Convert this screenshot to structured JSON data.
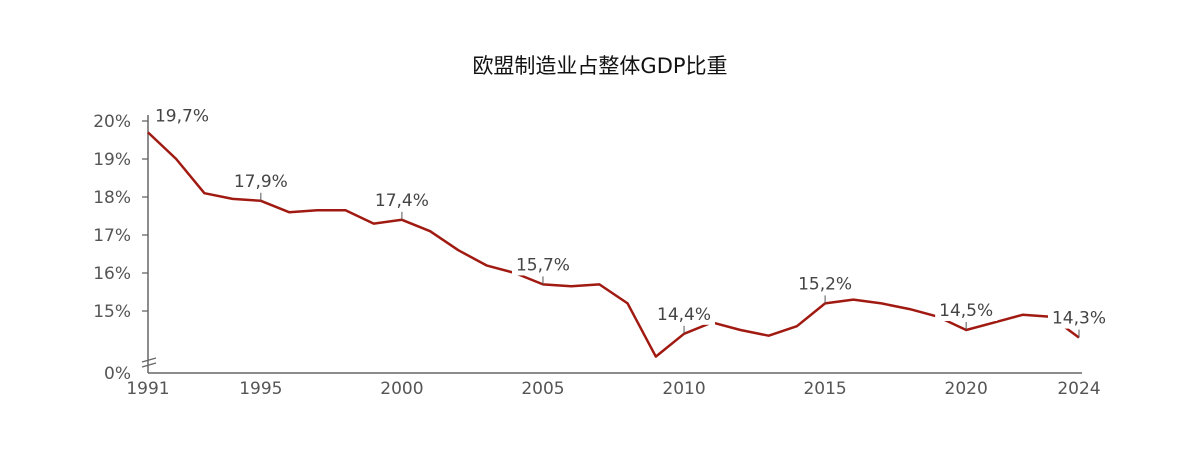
{
  "chart_data": {
    "type": "line",
    "title": "欧盟制造业占整体GDP比重",
    "xlabel": "",
    "ylabel": "",
    "x": [
      1991,
      1992,
      1993,
      1994,
      1995,
      1996,
      1997,
      1998,
      1999,
      2000,
      2001,
      2002,
      2003,
      2004,
      2005,
      2006,
      2007,
      2008,
      2009,
      2010,
      2011,
      2012,
      2013,
      2014,
      2015,
      2016,
      2017,
      2018,
      2019,
      2020,
      2021,
      2022,
      2023,
      2024
    ],
    "values": [
      19.7,
      19.0,
      18.1,
      17.95,
      17.9,
      17.6,
      17.65,
      17.65,
      17.3,
      17.4,
      17.1,
      16.6,
      16.2,
      16.0,
      15.7,
      15.65,
      15.7,
      15.2,
      13.8,
      14.4,
      14.7,
      14.5,
      14.35,
      14.6,
      15.2,
      15.3,
      15.2,
      15.05,
      14.85,
      14.5,
      14.7,
      14.9,
      14.85,
      14.3
    ],
    "line_color": "#a01a12",
    "y_ticks": [
      "0%",
      "15%",
      "16%",
      "17%",
      "18%",
      "19%",
      "20%"
    ],
    "y_tick_values": [
      0,
      15,
      16,
      17,
      18,
      19,
      20
    ],
    "y_axis_break": true,
    "ylim": [
      0,
      20
    ],
    "x_ticks": [
      "1991",
      "1995",
      "2000",
      "2005",
      "2010",
      "2015",
      "2020",
      "2024"
    ],
    "x_tick_values": [
      1991,
      1995,
      2000,
      2005,
      2010,
      2015,
      2020,
      2024
    ],
    "data_labels": [
      {
        "year": 1991,
        "text": "19,7%"
      },
      {
        "year": 1995,
        "text": "17,9%"
      },
      {
        "year": 2000,
        "text": "17,4%"
      },
      {
        "year": 2005,
        "text": "15,7%"
      },
      {
        "year": 2010,
        "text": "14,4%"
      },
      {
        "year": 2015,
        "text": "15,2%"
      },
      {
        "year": 2020,
        "text": "14,5%"
      },
      {
        "year": 2024,
        "text": "14,3%"
      }
    ],
    "grid": false,
    "legend": "none"
  }
}
